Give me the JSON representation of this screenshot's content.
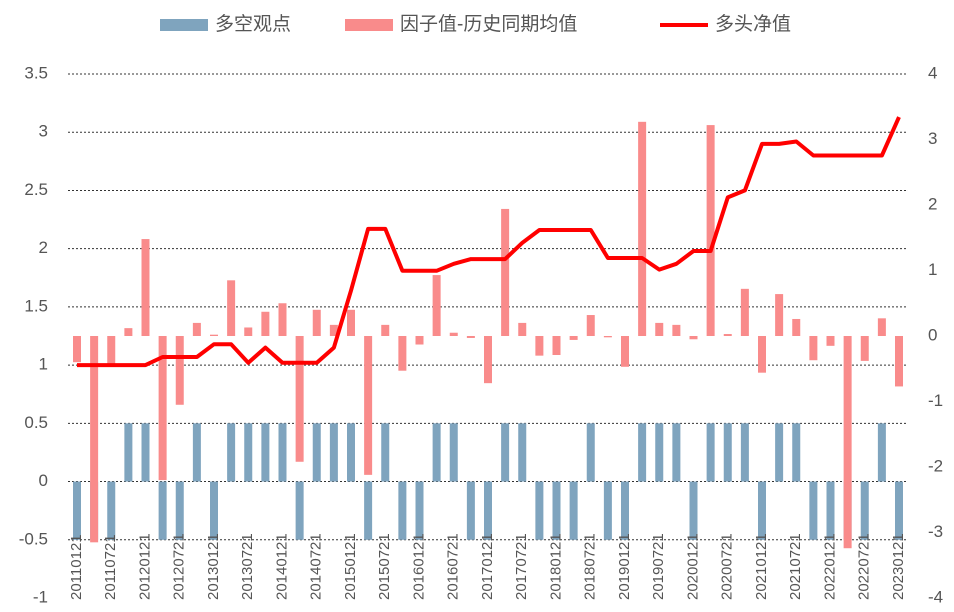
{
  "chart_data": {
    "type": "bar",
    "categories": [
      "20110121",
      null,
      "20110721",
      null,
      "20120121",
      null,
      "20120721",
      null,
      "20130121",
      null,
      "20130721",
      null,
      "20140121",
      null,
      "20140721",
      null,
      "20150121",
      null,
      "20150721",
      null,
      "20160121",
      null,
      "20160721",
      null,
      "20170121",
      null,
      "20170721",
      null,
      "20180121",
      null,
      "20180721",
      null,
      "20190121",
      null,
      "20190721",
      null,
      "20200121",
      null,
      "20200721",
      null,
      "20210121",
      null,
      "20210721",
      null,
      "20220121",
      null,
      "20220721",
      null,
      "20230121"
    ],
    "series": [
      {
        "name": "多空观点",
        "type": "bar",
        "color": "#7fa4be",
        "axis": "y",
        "values": [
          -0.5,
          -0.5,
          -0.5,
          0.5,
          0.5,
          -0.5,
          -0.5,
          0.5,
          -0.5,
          0.5,
          0.5,
          0.5,
          0.5,
          -0.5,
          0.5,
          0.5,
          0.5,
          -0.5,
          0.5,
          -0.5,
          -0.5,
          0.5,
          0.5,
          -0.5,
          -0.5,
          0.5,
          0.5,
          -0.5,
          -0.5,
          -0.5,
          0.5,
          -0.5,
          -0.5,
          0.5,
          0.5,
          0.5,
          -0.5,
          0.5,
          0.5,
          0.5,
          -0.5,
          0.5,
          0.5,
          -0.5,
          -0.5,
          -0.5,
          -0.5,
          0.5,
          -0.5
        ]
      },
      {
        "name": "因子值-历史同期均值",
        "type": "bar",
        "color": "#f98b8b",
        "axis": "y2",
        "values": [
          -0.4,
          -3.15,
          -0.45,
          0.12,
          1.48,
          -2.2,
          -1.05,
          0.2,
          0.02,
          0.85,
          0.13,
          0.37,
          0.5,
          -1.92,
          0.4,
          0.17,
          0.4,
          -2.12,
          0.17,
          -0.53,
          -0.13,
          0.93,
          0.05,
          -0.03,
          -0.72,
          1.94,
          0.2,
          -0.3,
          -0.29,
          -0.06,
          0.32,
          -0.02,
          -0.47,
          3.27,
          0.2,
          0.17,
          -0.05,
          3.22,
          0.03,
          0.72,
          -0.56,
          0.64,
          0.26,
          -0.37,
          -0.15,
          -3.24,
          -0.38,
          0.27,
          -0.77
        ]
      },
      {
        "name": "多头净值",
        "type": "line",
        "color": "#ff0000",
        "axis": "y",
        "values": [
          1.0,
          1.0,
          1.0,
          1.0,
          1.0,
          1.07,
          1.07,
          1.07,
          1.18,
          1.18,
          1.02,
          1.15,
          1.02,
          1.02,
          1.02,
          1.15,
          1.64,
          2.17,
          2.17,
          1.81,
          1.81,
          1.81,
          1.87,
          1.91,
          1.91,
          1.91,
          2.05,
          2.16,
          2.16,
          2.16,
          2.16,
          1.92,
          1.92,
          1.92,
          1.82,
          1.87,
          1.98,
          1.98,
          2.44,
          2.5,
          2.9,
          2.9,
          2.92,
          2.8,
          2.8,
          2.8,
          2.8,
          2.8,
          3.13
        ]
      }
    ],
    "ylim": [
      -1,
      3.5
    ],
    "yticks": [
      -1,
      -0.5,
      0,
      0.5,
      1,
      1.5,
      2,
      2.5,
      3,
      3.5
    ],
    "y2lim": [
      -4,
      4
    ],
    "y2ticks": [
      -4,
      -3,
      -2,
      -1,
      0,
      1,
      2,
      3,
      4
    ],
    "grid": true,
    "legend": "top"
  }
}
